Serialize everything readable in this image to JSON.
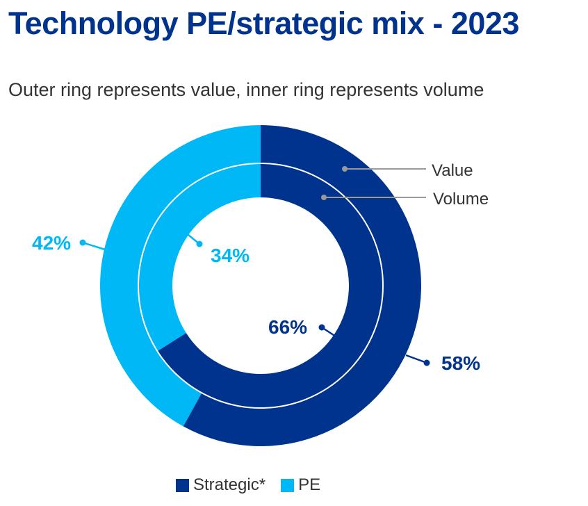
{
  "title": "Technology PE/strategic mix - 2023",
  "subtitle": "Outer ring represents value, inner ring represents volume",
  "colors": {
    "strategic": "#00338D",
    "pe": "#00B8F5",
    "leader": "#999999",
    "text": "#333333"
  },
  "chart_data": {
    "type": "donut",
    "title": "Technology PE/strategic mix - 2023",
    "subtitle": "Outer ring represents value, inner ring represents volume",
    "rings": [
      {
        "name": "Value",
        "position": "outer",
        "slices": [
          {
            "category": "Strategic*",
            "value": 58,
            "label": "58%"
          },
          {
            "category": "PE",
            "value": 42,
            "label": "42%"
          }
        ]
      },
      {
        "name": "Volume",
        "position": "inner",
        "slices": [
          {
            "category": "Strategic*",
            "value": 66,
            "label": "66%"
          },
          {
            "category": "PE",
            "value": 34,
            "label": "34%"
          }
        ]
      }
    ],
    "ring_labels": [
      "Value",
      "Volume"
    ],
    "legend": [
      {
        "label": "Strategic*",
        "color": "#00338D"
      },
      {
        "label": "PE",
        "color": "#00B8F5"
      }
    ],
    "legend_position": "bottom"
  }
}
